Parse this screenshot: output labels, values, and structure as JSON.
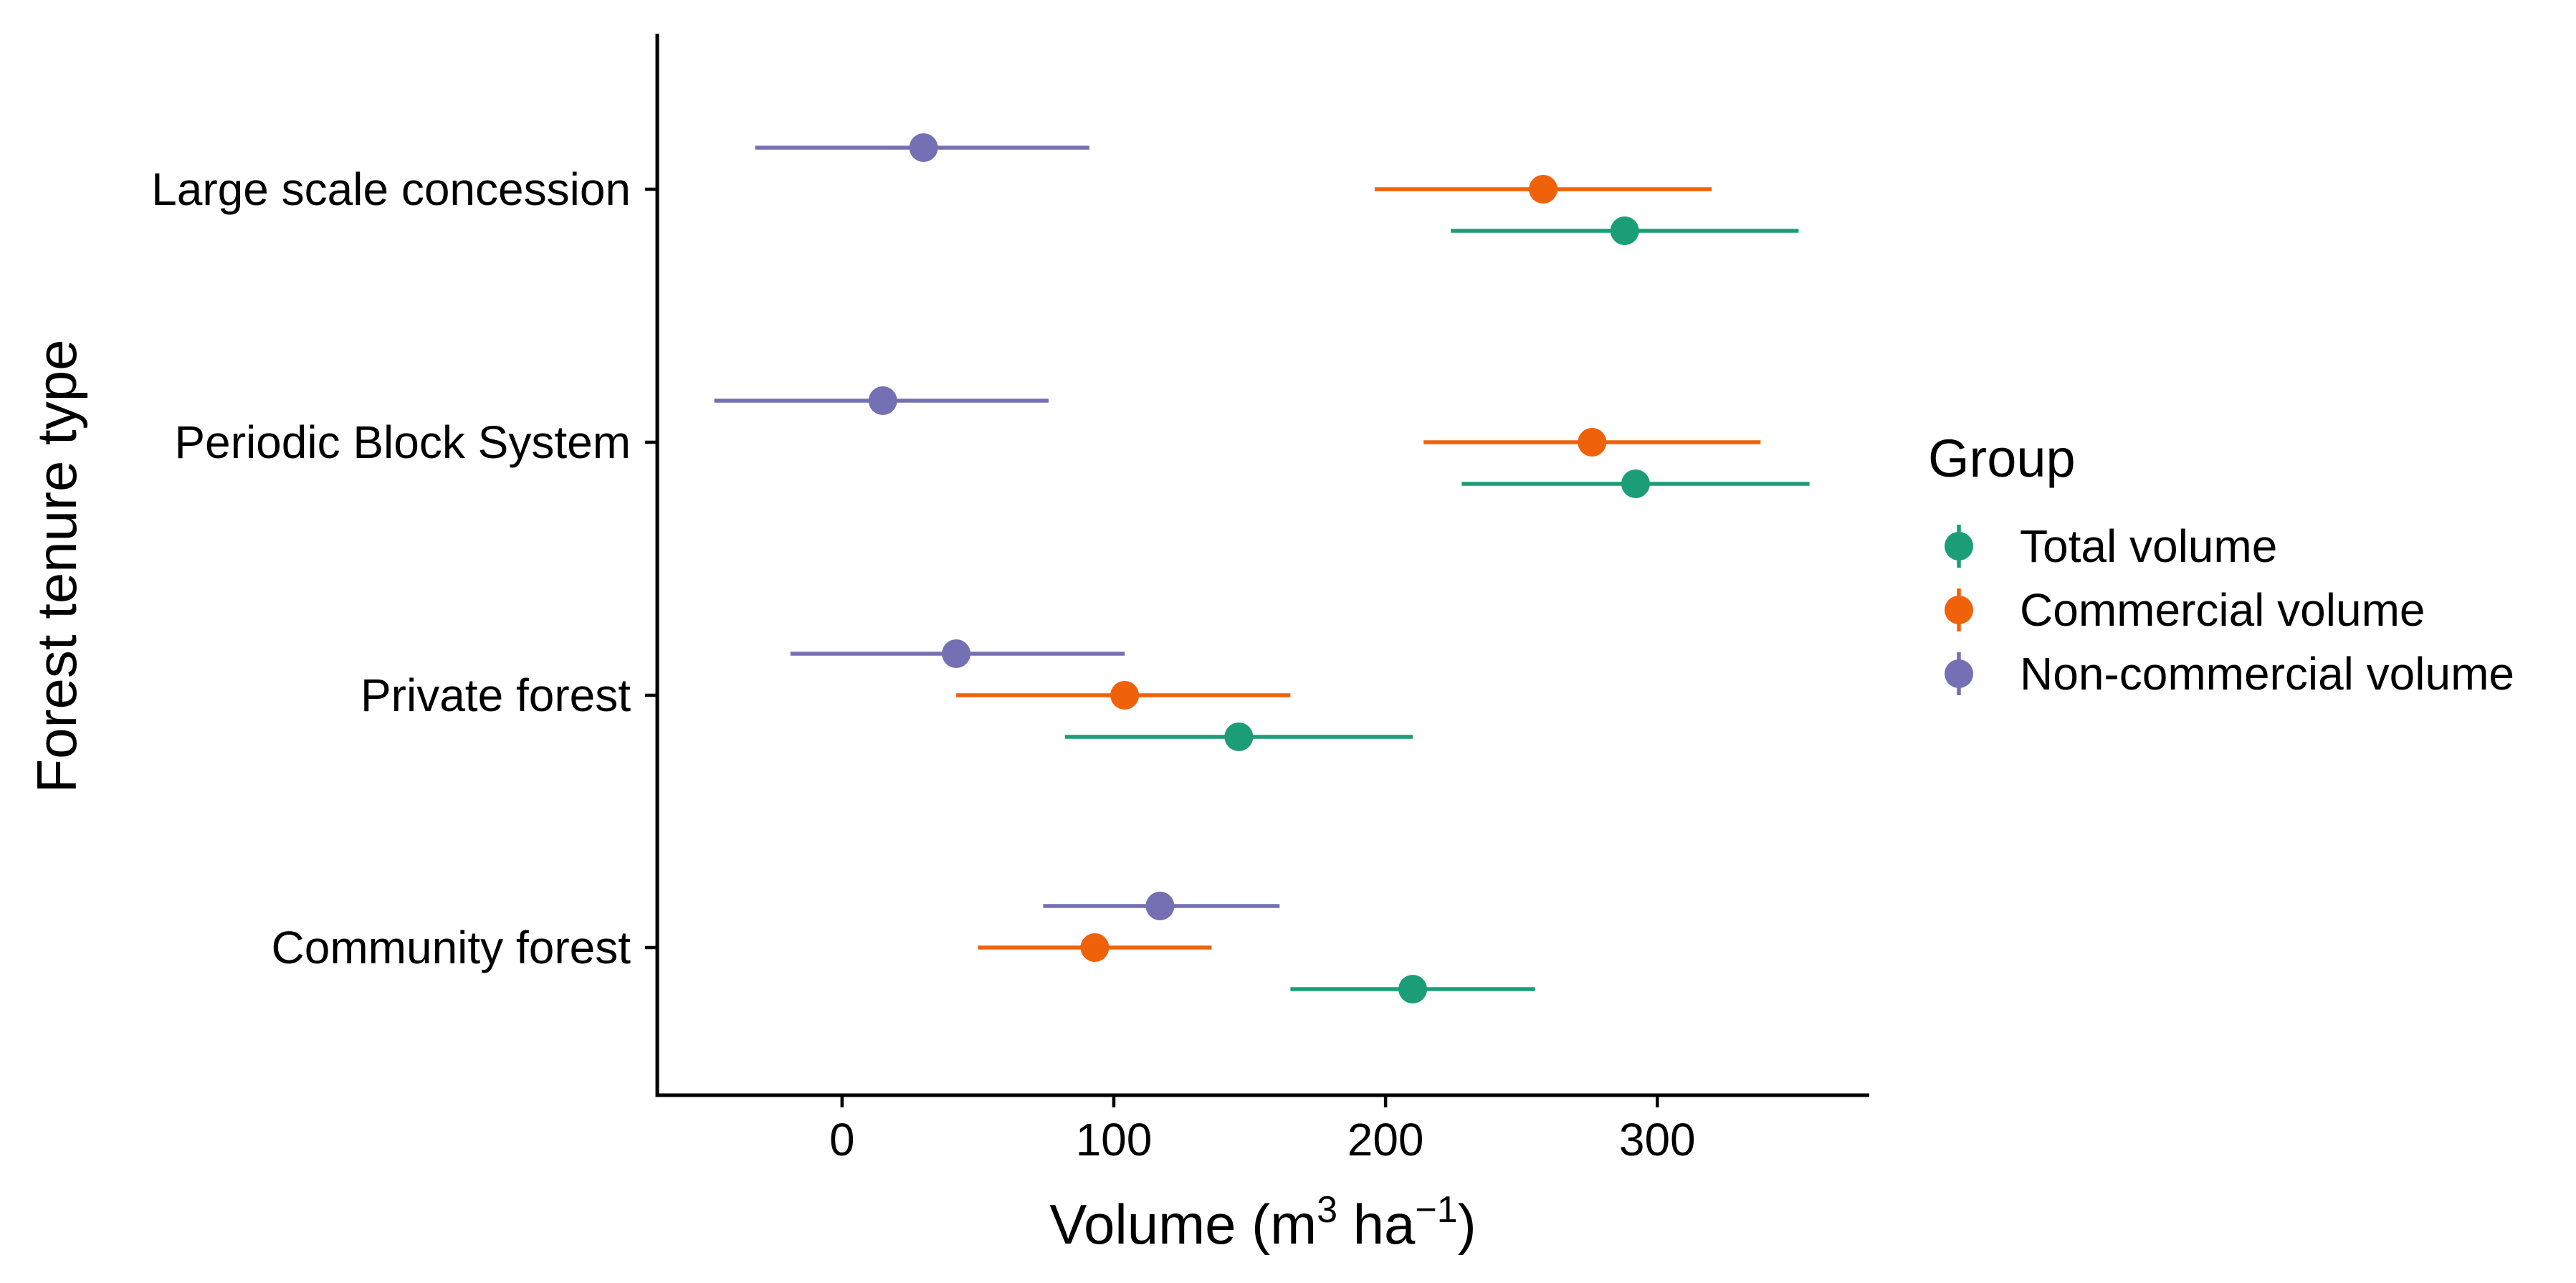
{
  "chart_data": {
    "type": "dot-errorbar",
    "title": "",
    "xlabel": "Volume (m³ ha⁻¹)",
    "xlabel_parts": {
      "prefix": "Volume (m",
      "sup1": "3",
      "mid": " ha",
      "sup2": "−1",
      "suffix": ")"
    },
    "ylabel": "Forest tenure type",
    "xlim": [
      -68,
      378
    ],
    "x_ticks": [
      0,
      100,
      200,
      300
    ],
    "x_tick_labels": [
      "0",
      "100",
      "200",
      "300"
    ],
    "categories": [
      "Large scale concession",
      "Periodic Block System",
      "Private forest",
      "Community forest"
    ],
    "legend": {
      "title": "Group",
      "position": "right"
    },
    "series": [
      {
        "name": "Total volume",
        "color": "#1b9e77",
        "points": [
          {
            "category": "Large scale concession",
            "value": 288,
            "low": 224,
            "high": 352
          },
          {
            "category": "Periodic Block System",
            "value": 292,
            "low": 228,
            "high": 356
          },
          {
            "category": "Private forest",
            "value": 146,
            "low": 82,
            "high": 210
          },
          {
            "category": "Community forest",
            "value": 210,
            "low": 165,
            "high": 255
          }
        ]
      },
      {
        "name": "Commercial volume",
        "color": "#f0620a",
        "points": [
          {
            "category": "Large scale concession",
            "value": 258,
            "low": 196,
            "high": 320
          },
          {
            "category": "Periodic Block System",
            "value": 276,
            "low": 214,
            "high": 338
          },
          {
            "category": "Private forest",
            "value": 104,
            "low": 42,
            "high": 165
          },
          {
            "category": "Community forest",
            "value": 93,
            "low": 50,
            "high": 136
          }
        ]
      },
      {
        "name": "Non-commercial volume",
        "color": "#7570b3",
        "points": [
          {
            "category": "Large scale concession",
            "value": 30,
            "low": -32,
            "high": 91
          },
          {
            "category": "Periodic Block System",
            "value": 15,
            "low": -47,
            "high": 76
          },
          {
            "category": "Private forest",
            "value": 42,
            "low": -19,
            "high": 104
          },
          {
            "category": "Community forest",
            "value": 117,
            "low": 74,
            "high": 161
          }
        ]
      }
    ]
  }
}
